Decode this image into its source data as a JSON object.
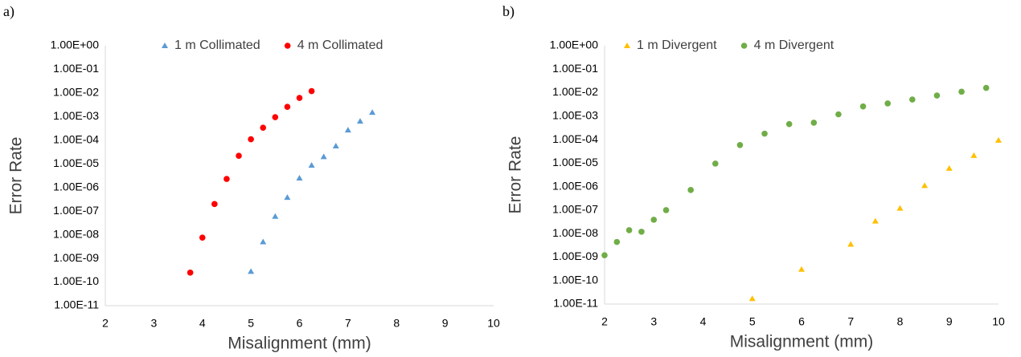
{
  "chart_data": [
    {
      "type": "scatter",
      "label": "a)",
      "x_label": "Misalignment (mm)",
      "y_label": "Error Rate",
      "log_y": true,
      "legend": "top",
      "grid": false,
      "xlim": [
        2,
        10
      ],
      "xticks": [
        2,
        3,
        4,
        5,
        6,
        7,
        8,
        9,
        10
      ],
      "ylim": [
        1e-11,
        1
      ],
      "yticks": [
        {
          "value": 1e-11,
          "label": "1.00E-11"
        },
        {
          "value": 1e-10,
          "label": "1.00E-10"
        },
        {
          "value": 1e-09,
          "label": "1.00E-09"
        },
        {
          "value": 1e-08,
          "label": "1.00E-08"
        },
        {
          "value": 1e-07,
          "label": "1.00E-07"
        },
        {
          "value": 1e-06,
          "label": "1.00E-06"
        },
        {
          "value": 1e-05,
          "label": "1.00E-05"
        },
        {
          "value": 0.0001,
          "label": "1.00E-04"
        },
        {
          "value": 0.001,
          "label": "1.00E-03"
        },
        {
          "value": 0.01,
          "label": "1.00E-02"
        },
        {
          "value": 0.1,
          "label": "1.00E-01"
        },
        {
          "value": 1,
          "label": "1.00E+00"
        }
      ],
      "series": [
        {
          "name": "1 m Collimated",
          "color": "#5b9bd5",
          "marker": "triangle",
          "x": [
            5,
            5.25,
            5.5,
            5.75,
            6,
            6.25,
            6.5,
            6.75,
            7,
            7.25,
            7.5
          ],
          "values": [
            2.8e-10,
            5e-09,
            6e-08,
            3.8e-07,
            2.5e-06,
            8.7e-06,
            2e-05,
            5.7e-05,
            0.00027,
            0.00064,
            0.0015
          ]
        },
        {
          "name": "4 m Collimated",
          "color": "#ff0000",
          "marker": "circle",
          "x": [
            3.75,
            4,
            4.25,
            4.5,
            4.75,
            5,
            5.25,
            5.5,
            5.75,
            6,
            6.25
          ],
          "values": [
            2.5e-10,
            7.6e-09,
            2e-07,
            2.3e-06,
            2.2e-05,
            0.00011,
            0.00034,
            0.00095,
            0.0026,
            0.0062,
            0.012
          ]
        }
      ]
    },
    {
      "type": "scatter",
      "label": "b)",
      "x_label": "Misalignment (mm)",
      "y_label": "Error Rate",
      "log_y": true,
      "legend": "top",
      "grid": false,
      "xlim": [
        2,
        10
      ],
      "xticks": [
        2,
        3,
        4,
        5,
        6,
        7,
        8,
        9,
        10
      ],
      "ylim": [
        1e-11,
        1
      ],
      "yticks": [
        {
          "value": 1e-11,
          "label": "1.00E-11"
        },
        {
          "value": 1e-10,
          "label": "1.00E-10"
        },
        {
          "value": 1e-09,
          "label": "1.00E-09"
        },
        {
          "value": 1e-08,
          "label": "1.00E-08"
        },
        {
          "value": 1e-07,
          "label": "1.00E-07"
        },
        {
          "value": 1e-06,
          "label": "1.00E-06"
        },
        {
          "value": 1e-05,
          "label": "1.00E-05"
        },
        {
          "value": 0.0001,
          "label": "1.00E-04"
        },
        {
          "value": 0.001,
          "label": "1.00E-03"
        },
        {
          "value": 0.01,
          "label": "1.00E-02"
        },
        {
          "value": 0.1,
          "label": "1.00E-01"
        },
        {
          "value": 1,
          "label": "1.00E+00"
        }
      ],
      "series": [
        {
          "name": "1 m Divergent",
          "color": "#ffc000",
          "marker": "triangle",
          "x": [
            5,
            6,
            7,
            7.5,
            8,
            8.5,
            9,
            9.5,
            10
          ],
          "values": [
            1.7e-11,
            3e-10,
            3.5e-09,
            3.4e-08,
            1.2e-07,
            1.1e-06,
            6e-06,
            2.1e-05,
            9.4e-05
          ]
        },
        {
          "name": "4 m Divergent",
          "color": "#70ad47",
          "marker": "circle",
          "x": [
            2,
            2.25,
            2.5,
            2.75,
            3,
            3.25,
            3.75,
            4.25,
            4.75,
            5.25,
            5.75,
            6.25,
            6.75,
            7.25,
            7.75,
            8.25,
            8.75,
            9.25,
            9.75
          ],
          "values": [
            1.2e-09,
            4.4e-09,
            1.4e-08,
            1.2e-08,
            3.9e-08,
            1e-07,
            7.2e-07,
            9.6e-06,
            5.9e-05,
            0.00018,
            0.00046,
            0.00053,
            0.0012,
            0.0026,
            0.0035,
            0.0051,
            0.0076,
            0.011,
            0.016
          ]
        }
      ]
    }
  ]
}
